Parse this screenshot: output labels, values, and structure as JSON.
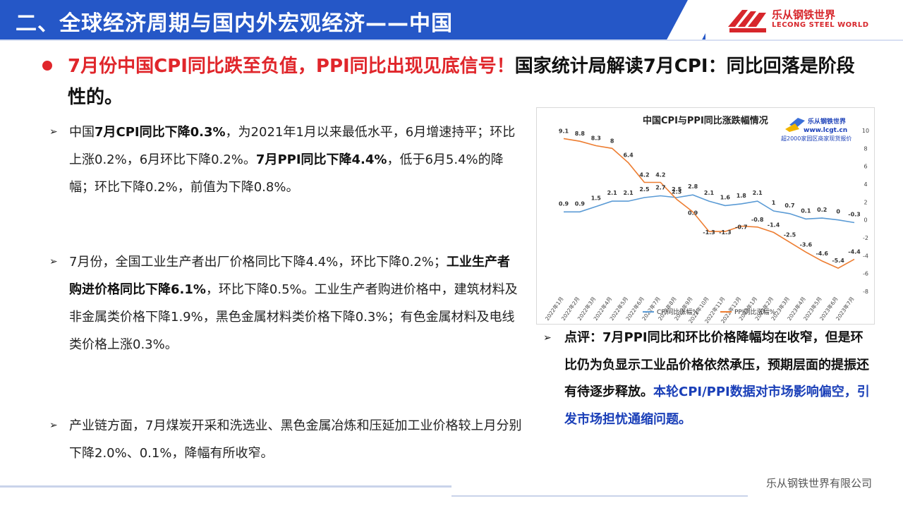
{
  "header": {
    "title": "二、全球经济周期与国内外宏观经济——中国",
    "logo_cn": "乐从钢铁世界",
    "logo_en": "LECONG STEEL WORLD"
  },
  "headline": {
    "red_part": "7月份中国CPI同比跌至负值，PPI同比出现见底信号！",
    "black_part": "国家统计局解读7月CPI：同比回落是阶段性的。"
  },
  "bullets": [
    {
      "segments": [
        {
          "t": "中国",
          "b": false
        },
        {
          "t": "7月CPI同比下降0.3%",
          "b": true
        },
        {
          "t": "，为2021年1月以来最低水平，6月增速持平；环比上涨0.2%，6月环比下降0.2%。",
          "b": false
        },
        {
          "t": "7月PPI同比下降4.4%",
          "b": true
        },
        {
          "t": "，低于6月5.4%的降幅；环比下降0.2%，前值为下降0.8%。",
          "b": false
        }
      ]
    },
    {
      "segments": [
        {
          "t": "7月份，全国工业生产者出厂价格同比下降4.4%，环比下降0.2%；",
          "b": false
        },
        {
          "t": "工业生产者购进价格同比下降6.1%",
          "b": true
        },
        {
          "t": "，环比下降0.5%。工业生产者购进价格中，建筑材料及非金属类价格下降1.9%，黑色金属材料类价格下降0.3%；有色金属材料及电线类价格上涨0.3%。",
          "b": false
        }
      ]
    },
    {
      "segments": [
        {
          "t": "产业链方面，7月煤炭开采和洗选业、黑色金属冶炼和压延加工业价格较上月分别下降2.0%、0.1%，降幅有所收窄。",
          "b": false
        }
      ]
    }
  ],
  "comment": {
    "black_part": "点评：7月PPI同比和环比价格降幅均在收窄，但是环比仍为负显示工业品价格依然承压，预期层面的提振还有待逐步释放。",
    "blue_part": "本轮CPI/PPI数据对市场影响偏空，引发市场担忧通缩问题。"
  },
  "chart_data": {
    "type": "line",
    "title": "中国CPI与PPI同比涨跌幅情况",
    "watermark": {
      "name": "乐从钢铁世界",
      "url": "www.lcgt.cn",
      "slogan": "超2000家园区商家现货报价"
    },
    "categories": [
      "2022年1月",
      "2022年2月",
      "2022年3月",
      "2022年4月",
      "2022年5月",
      "2022年6月",
      "2022年7月",
      "2022年8月",
      "2022年9月",
      "2022年10月",
      "2022年11月",
      "2022年12月",
      "2023年1月",
      "2023年2月",
      "2023年3月",
      "2023年4月",
      "2023年5月",
      "2023年6月",
      "2023年7月"
    ],
    "series": [
      {
        "name": "CPI同比涨幅%",
        "color": "#5b9bd5",
        "values": [
          0.9,
          0.9,
          1.5,
          2.1,
          2.1,
          2.5,
          2.7,
          2.5,
          2.8,
          2.1,
          1.6,
          1.8,
          2.1,
          1.0,
          0.7,
          0.1,
          0.2,
          0.0,
          -0.3
        ]
      },
      {
        "name": "PPI同比涨幅%",
        "color": "#ed7d31",
        "values": [
          9.1,
          8.8,
          8.3,
          8.0,
          6.4,
          4.2,
          4.2,
          2.3,
          0.9,
          -1.3,
          -1.3,
          -0.7,
          -0.8,
          -1.4,
          -2.5,
          -3.6,
          -4.6,
          -5.4,
          -4.4
        ]
      }
    ],
    "y_axis": {
      "side": "right",
      "min": -8,
      "max": 10,
      "ticks": [
        10,
        8,
        6,
        4,
        2,
        0,
        -2,
        -4,
        -6,
        -8
      ]
    },
    "legend": "bottom",
    "grid": false
  },
  "footer": {
    "company": "乐从钢铁世界有限公司"
  }
}
